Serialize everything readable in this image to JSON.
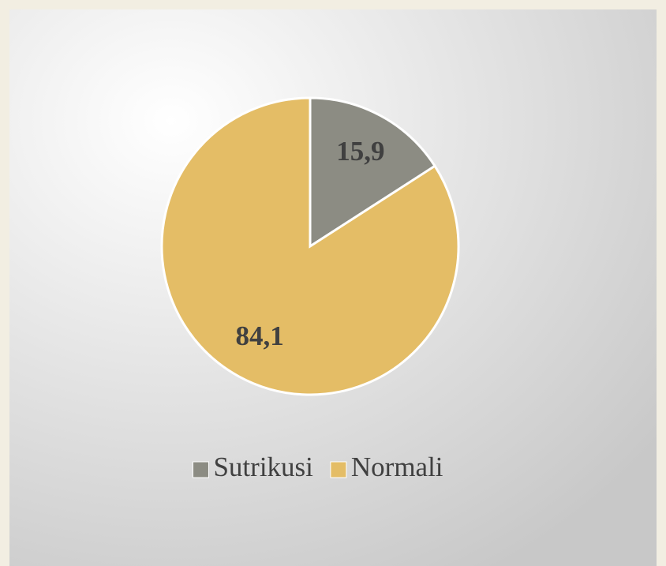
{
  "chart_data": {
    "type": "pie",
    "categories": [
      "Sutrikusi",
      "Normali"
    ],
    "values": [
      15.9,
      84.1
    ],
    "value_labels": [
      "15,9",
      "84,1"
    ],
    "colors": [
      "#8c8c83",
      "#e4bd66"
    ],
    "legend": "bottom"
  }
}
